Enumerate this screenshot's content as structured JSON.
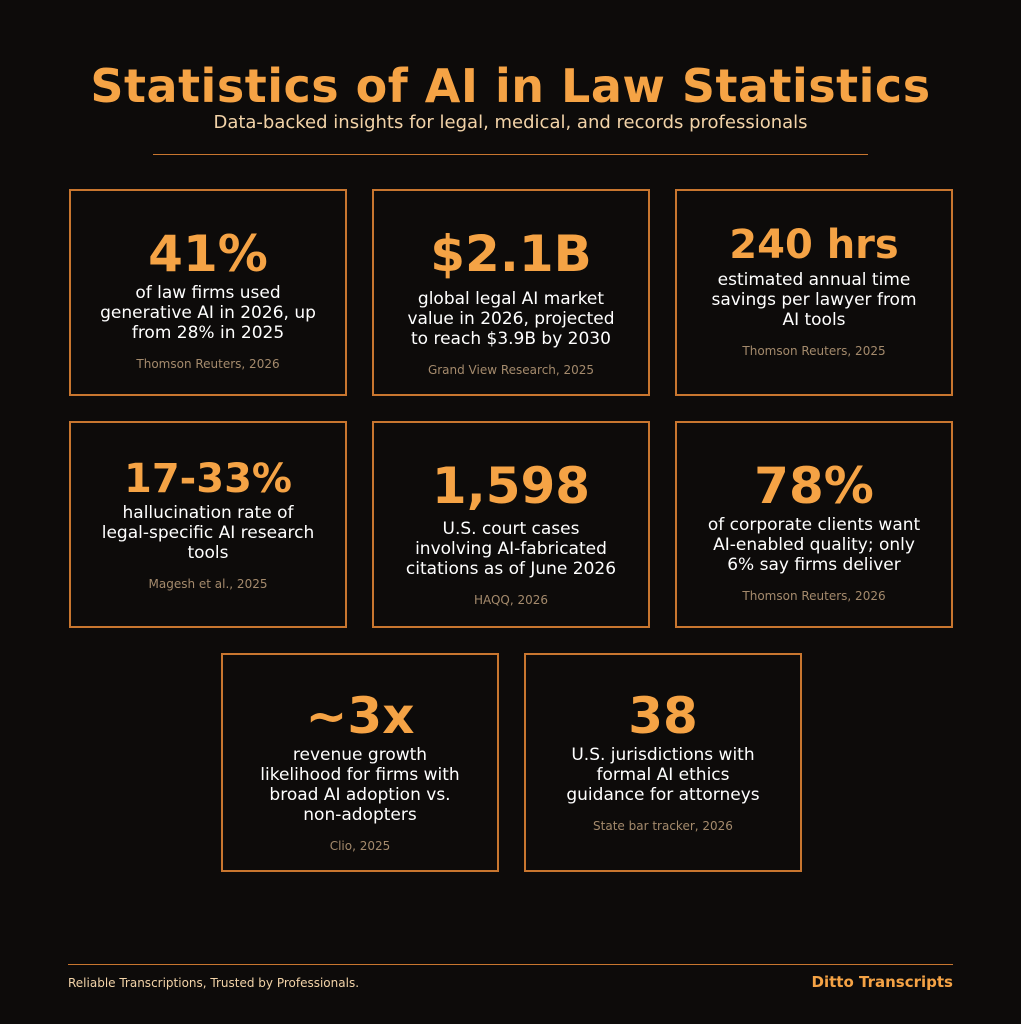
{
  "header": {
    "title": "Statistics of AI in Law Statistics",
    "subtitle": "Data-backed insights for legal, medical, and records professionals"
  },
  "cards": [
    {
      "stat": "41%",
      "desc": [
        "of law firms used",
        "generative AI in 2026, up",
        "from 28% in 2025"
      ],
      "source": "Thomson Reuters, 2026"
    },
    {
      "stat": "$2.1B",
      "desc": [
        "global legal AI market",
        "value in 2026, projected",
        "to reach $3.9B by 2030"
      ],
      "source": "Grand View Research, 2025"
    },
    {
      "stat": "240 hrs",
      "desc": [
        "estimated annual time",
        "savings per lawyer from",
        "AI tools"
      ],
      "source": "Thomson Reuters, 2025"
    },
    {
      "stat": "17-33%",
      "desc": [
        "hallucination rate of",
        "legal-specific AI research",
        "tools"
      ],
      "source": "Magesh et al., 2025"
    },
    {
      "stat": "1,598",
      "desc": [
        "U.S. court cases",
        "involving AI-fabricated",
        "citations as of June 2026"
      ],
      "source": "HAQQ, 2026"
    },
    {
      "stat": "78%",
      "desc": [
        "of corporate clients want",
        "AI-enabled quality; only",
        "6% say firms deliver"
      ],
      "source": "Thomson Reuters, 2026"
    },
    {
      "stat": "~3x",
      "desc": [
        "revenue growth",
        "likelihood for firms with",
        "broad AI adoption vs.",
        "non-adopters"
      ],
      "source": "Clio, 2025"
    },
    {
      "stat": "38",
      "desc": [
        "U.S. jurisdictions with",
        "formal AI ethics",
        "guidance for attorneys"
      ],
      "source": "State bar tracker, 2026"
    }
  ],
  "footer": {
    "tagline": "Reliable Transcriptions, Trusted by Professionals.",
    "brand": "Ditto Transcripts"
  }
}
